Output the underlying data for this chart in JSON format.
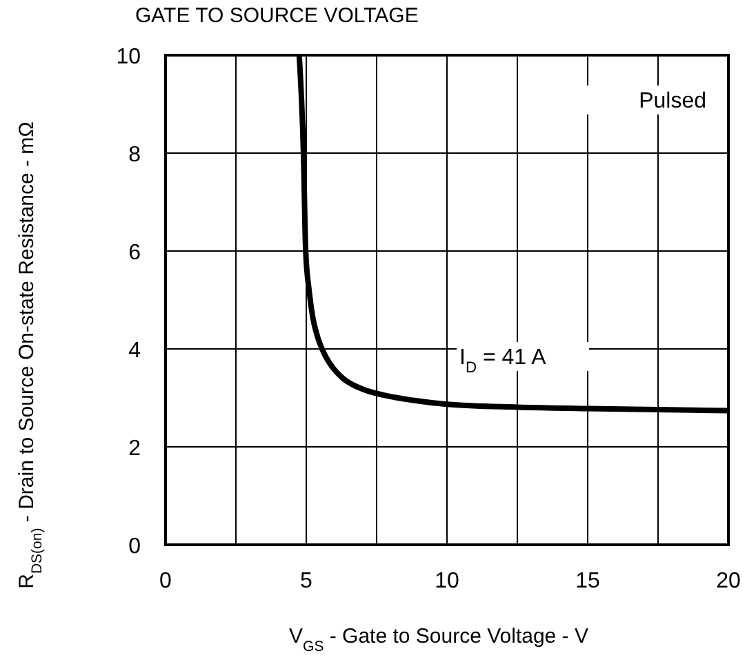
{
  "chart_data": {
    "type": "line",
    "title": "GATE TO SOURCE VOLTAGE",
    "xlabel": "V$_{GS}$ - Gate to Source Voltage - V",
    "ylabel": "R$_{DS(on)}$ - Drain to Source On-state Resistance - mΩ",
    "annotations": [
      "Pulsed",
      "I$_{D}$ = 41 A"
    ],
    "x": [
      4.75,
      4.9,
      4.98,
      5.1,
      5.23,
      5.4,
      5.6,
      5.9,
      6.3,
      7.0,
      7.8,
      8.8,
      10,
      12.5,
      15,
      17.5,
      20
    ],
    "series": [
      {
        "color": "#000000",
        "values": [
          10,
          8,
          6,
          5.2,
          4.65,
          4.25,
          3.95,
          3.65,
          3.4,
          3.18,
          3.05,
          2.95,
          2.87,
          2.81,
          2.78,
          2.76,
          2.74
        ]
      }
    ],
    "xlim": [
      0,
      20
    ],
    "xticks": [
      0,
      {
        "value": 2.5,
        "label": null
      },
      5,
      {
        "value": 7.5,
        "label": null
      },
      10,
      {
        "value": 12.5,
        "label": null
      },
      15,
      {
        "value": 17.5,
        "label": null
      },
      20
    ],
    "ylim": [
      0,
      10
    ],
    "yticks": [
      0,
      2,
      4,
      6,
      8,
      10
    ],
    "grid": true,
    "line_style": "solid"
  }
}
